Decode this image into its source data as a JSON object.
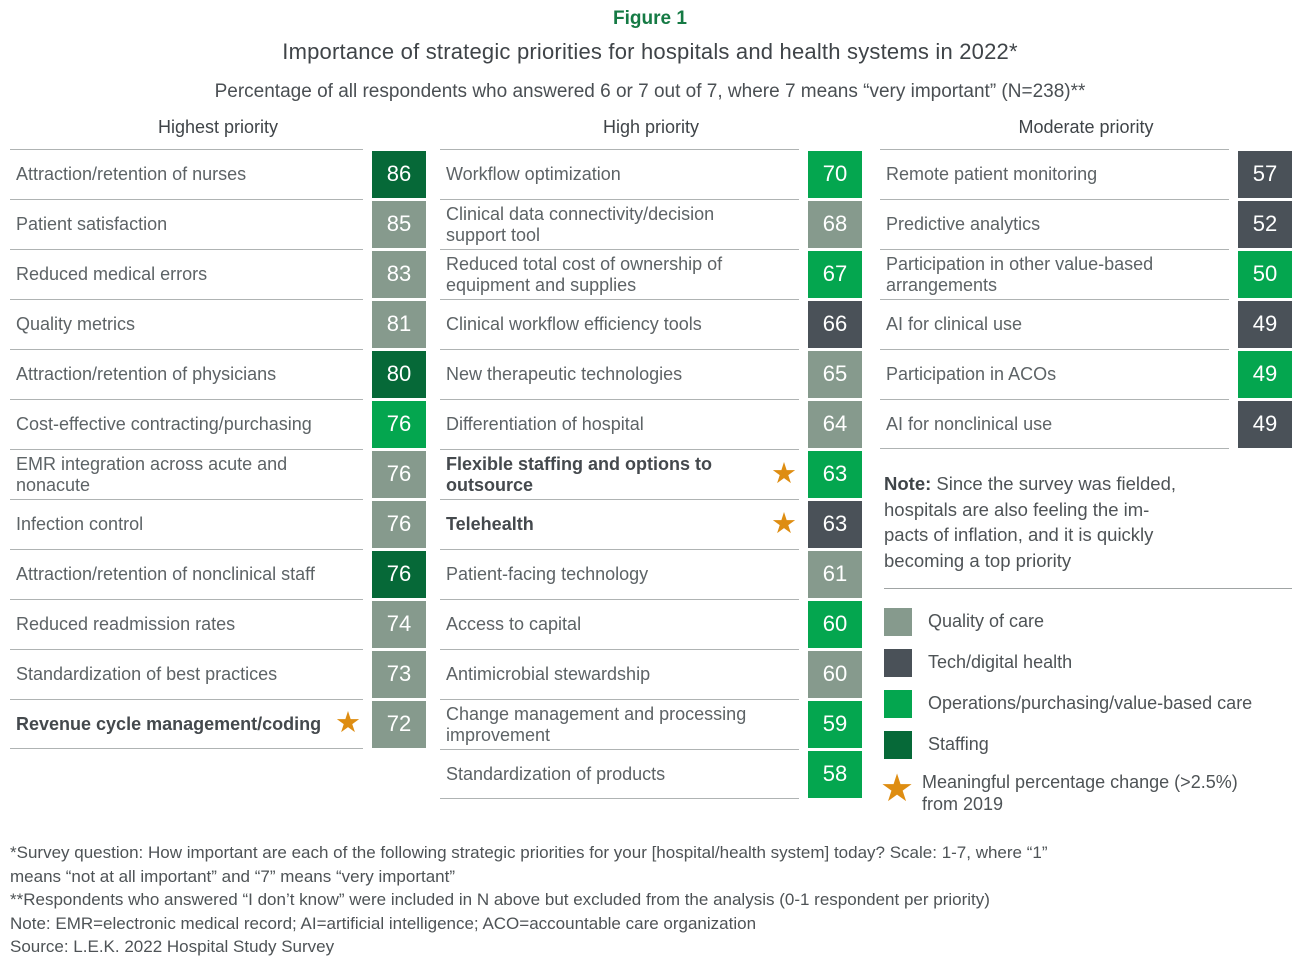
{
  "colors": {
    "quality": "#869A8D",
    "tech": "#4A5158",
    "operations": "#04A64F",
    "staffing": "#066938",
    "figure_label_green": "#157A44",
    "star_orange": "#DE8D12"
  },
  "chart_data": {
    "type": "bar",
    "figure_label": "Figure 1",
    "title": "Importance of strategic priorities for hospitals and health systems in 2022*",
    "subtitle": "Percentage of all respondents who answered 6 or 7 out of 7, where 7 means “very important” (N=238)**",
    "value_unit": "percent of respondents answering 6 or 7 out of 7",
    "value_range": [
      0,
      100
    ],
    "columns": [
      {
        "header": "Highest priority",
        "items": [
          {
            "label": "Attraction/retention of nurses",
            "value": 86,
            "category": "staffing",
            "star": false
          },
          {
            "label": "Patient satisfaction",
            "value": 85,
            "category": "quality",
            "star": false
          },
          {
            "label": "Reduced medical errors",
            "value": 83,
            "category": "quality",
            "star": false
          },
          {
            "label": "Quality metrics",
            "value": 81,
            "category": "quality",
            "star": false
          },
          {
            "label": "Attraction/retention of physicians",
            "value": 80,
            "category": "staffing",
            "star": false
          },
          {
            "label": "Cost-effective contracting/purchasing",
            "value": 76,
            "category": "operations",
            "star": false
          },
          {
            "label": "EMR integration across acute and nonacute",
            "value": 76,
            "category": "quality",
            "star": false
          },
          {
            "label": "Infection control",
            "value": 76,
            "category": "quality",
            "star": false
          },
          {
            "label": "Attraction/retention of nonclinical staff",
            "value": 76,
            "category": "staffing",
            "star": false
          },
          {
            "label": "Reduced readmission rates",
            "value": 74,
            "category": "quality",
            "star": false
          },
          {
            "label": "Standardization of best practices",
            "value": 73,
            "category": "quality",
            "star": false
          },
          {
            "label": "Revenue cycle management/coding",
            "value": 72,
            "category": "quality",
            "star": true
          }
        ]
      },
      {
        "header": "High priority",
        "items": [
          {
            "label": "Workflow optimization",
            "value": 70,
            "category": "operations",
            "star": false
          },
          {
            "label": "Clinical data connectivity/decision support tool",
            "value": 68,
            "category": "quality",
            "star": false
          },
          {
            "label": "Reduced total cost of ownership of equipment and supplies",
            "value": 67,
            "category": "operations",
            "star": false
          },
          {
            "label": "Clinical workflow efficiency tools",
            "value": 66,
            "category": "tech",
            "star": false
          },
          {
            "label": "New therapeutic technologies",
            "value": 65,
            "category": "quality",
            "star": false
          },
          {
            "label": "Differentiation of hospital",
            "value": 64,
            "category": "quality",
            "star": false
          },
          {
            "label": "Flexible staffing and options to outsource",
            "value": 63,
            "category": "operations",
            "star": true
          },
          {
            "label": "Telehealth",
            "value": 63,
            "category": "tech",
            "star": true
          },
          {
            "label": "Patient-facing technology",
            "value": 61,
            "category": "quality",
            "star": false
          },
          {
            "label": "Access to capital",
            "value": 60,
            "category": "operations",
            "star": false
          },
          {
            "label": "Antimicrobial stewardship",
            "value": 60,
            "category": "quality",
            "star": false
          },
          {
            "label": "Change management and processing improvement",
            "value": 59,
            "category": "operations",
            "star": false
          },
          {
            "label": "Standardization of products",
            "value": 58,
            "category": "operations",
            "star": false
          }
        ]
      },
      {
        "header": "Moderate priority",
        "items": [
          {
            "label": "Remote patient monitoring",
            "value": 57,
            "category": "tech",
            "star": false
          },
          {
            "label": "Predictive analytics",
            "value": 52,
            "category": "tech",
            "star": false
          },
          {
            "label": "Participation in other value-based arrangements",
            "value": 50,
            "category": "operations",
            "star": false
          },
          {
            "label": "AI for clinical use",
            "value": 49,
            "category": "tech",
            "star": false
          },
          {
            "label": "Participation in ACOs",
            "value": 49,
            "category": "operations",
            "star": false
          },
          {
            "label": "AI for nonclinical use",
            "value": 49,
            "category": "tech",
            "star": false
          }
        ]
      }
    ]
  },
  "note": {
    "label": "Note:",
    "lines": [
      "Since the survey was fielded,",
      "hospitals are also feeling the im-",
      "pacts of inflation, and it is quickly",
      "becoming a top priority"
    ]
  },
  "legend": {
    "items": [
      {
        "type": "swatch",
        "category": "quality",
        "label": "Quality of care"
      },
      {
        "type": "swatch",
        "category": "tech",
        "label": "Tech/digital health"
      },
      {
        "type": "swatch",
        "category": "operations",
        "label": "Operations/purchasing/value-based care"
      },
      {
        "type": "swatch",
        "category": "staffing",
        "label": "Staffing"
      },
      {
        "type": "star",
        "category": "star_orange",
        "label": "Meaningful percentage change (>2.5%) from 2019"
      }
    ]
  },
  "footnotes": {
    "lines": [
      "*Survey question: How important are each of the following strategic priorities for your [hospital/health system] today? Scale: 1-7, where “1”",
      "means “not at all important” and “7” means “very important”",
      "**Respondents who answered “I don’t know” were included in N above but excluded from the analysis (0-1 respondent per priority)",
      "Note: EMR=electronic medical record; AI=artificial intelligence; ACO=accountable care organization",
      "Source: L.E.K. 2022 Hospital Study Survey"
    ]
  }
}
